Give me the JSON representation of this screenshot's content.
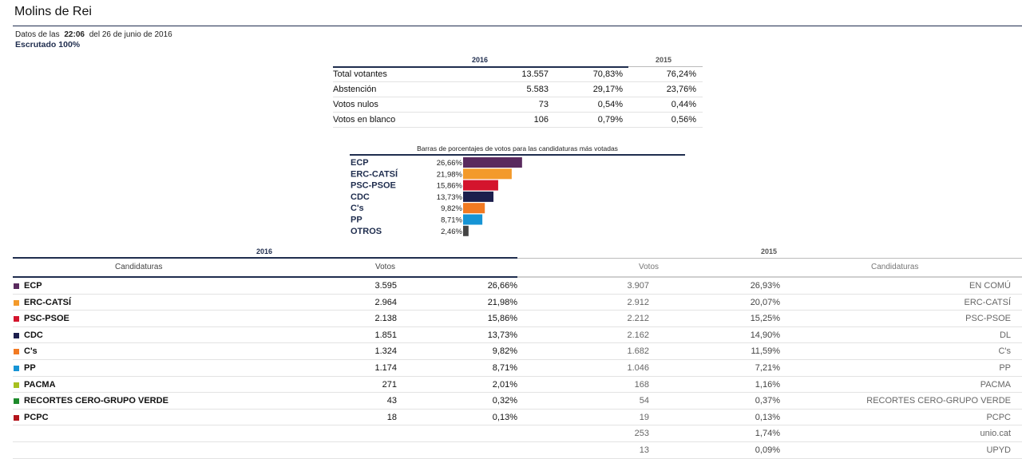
{
  "header": {
    "title": "Molins de Rei",
    "date_prefix": "Datos de las",
    "time": "22:06",
    "date_suffix": "del 26 de junio de 2016",
    "escrutado": "Escrutado 100%"
  },
  "summary": {
    "year_current": "2016",
    "year_previous": "2015",
    "rows": [
      {
        "label": "Total votantes",
        "n2016": "13.557",
        "p2016": "70,83%",
        "p2015": "76,24%"
      },
      {
        "label": "Abstención",
        "n2016": "5.583",
        "p2016": "29,17%",
        "p2015": "23,76%"
      },
      {
        "label": "Votos nulos",
        "n2016": "73",
        "p2016": "0,54%",
        "p2015": "0,44%"
      },
      {
        "label": "Votos en blanco",
        "n2016": "106",
        "p2016": "0,79%",
        "p2015": "0,56%"
      }
    ]
  },
  "chart_data": {
    "type": "bar",
    "title": "Barras de porcentajes de votos para las candidaturas más votadas",
    "categories": [
      "ECP",
      "ERC-CATSÍ",
      "PSC-PSOE",
      "CDC",
      "C's",
      "PP",
      "OTROS"
    ],
    "values": [
      26.66,
      21.98,
      15.86,
      13.73,
      9.82,
      8.71,
      2.46
    ],
    "value_labels": [
      "26,66%",
      "21,98%",
      "15,86%",
      "13,73%",
      "9,82%",
      "8,71%",
      "2,46%"
    ],
    "colors": [
      "#5a2a5e",
      "#f39a2b",
      "#d4142d",
      "#1c1f4d",
      "#f27a22",
      "#1694d5",
      "#444444"
    ],
    "xlim": [
      0,
      100
    ]
  },
  "results": {
    "year_current": "2016",
    "year_previous": "2015",
    "col_candidaturas": "Candidaturas",
    "col_votos": "Votos",
    "parties": [
      {
        "name": "ECP",
        "color": "#5a2a5e",
        "v2016": "3.595",
        "p2016": "26,66%",
        "v2015": "3.907",
        "p2015": "26,93%",
        "name2015": "EN COMÚ"
      },
      {
        "name": "ERC-CATSÍ",
        "color": "#f39a2b",
        "v2016": "2.964",
        "p2016": "21,98%",
        "v2015": "2.912",
        "p2015": "20,07%",
        "name2015": "ERC-CATSÍ"
      },
      {
        "name": "PSC-PSOE",
        "color": "#d4142d",
        "v2016": "2.138",
        "p2016": "15,86%",
        "v2015": "2.212",
        "p2015": "15,25%",
        "name2015": "PSC-PSOE"
      },
      {
        "name": "CDC",
        "color": "#1c1f4d",
        "v2016": "1.851",
        "p2016": "13,73%",
        "v2015": "2.162",
        "p2015": "14,90%",
        "name2015": "DL"
      },
      {
        "name": "C's",
        "color": "#f27a22",
        "v2016": "1.324",
        "p2016": "9,82%",
        "v2015": "1.682",
        "p2015": "11,59%",
        "name2015": "C's"
      },
      {
        "name": "PP",
        "color": "#1694d5",
        "v2016": "1.174",
        "p2016": "8,71%",
        "v2015": "1.046",
        "p2015": "7,21%",
        "name2015": "PP"
      },
      {
        "name": "PACMA",
        "color": "#a7c01f",
        "v2016": "271",
        "p2016": "2,01%",
        "v2015": "168",
        "p2015": "1,16%",
        "name2015": "PACMA"
      },
      {
        "name": "RECORTES CERO-GRUPO VERDE",
        "color": "#1d8a2b",
        "v2016": "43",
        "p2016": "0,32%",
        "v2015": "54",
        "p2015": "0,37%",
        "name2015": "RECORTES CERO-GRUPO VERDE"
      },
      {
        "name": "PCPC",
        "color": "#b3141b",
        "v2016": "18",
        "p2016": "0,13%",
        "v2015": "19",
        "p2015": "0,13%",
        "name2015": "PCPC"
      },
      {
        "name": "",
        "color": "",
        "v2016": "",
        "p2016": "",
        "v2015": "253",
        "p2015": "1,74%",
        "name2015": "unio.cat"
      },
      {
        "name": "",
        "color": "",
        "v2016": "",
        "p2016": "",
        "v2015": "13",
        "p2015": "0,09%",
        "name2015": "UPYD"
      }
    ]
  }
}
